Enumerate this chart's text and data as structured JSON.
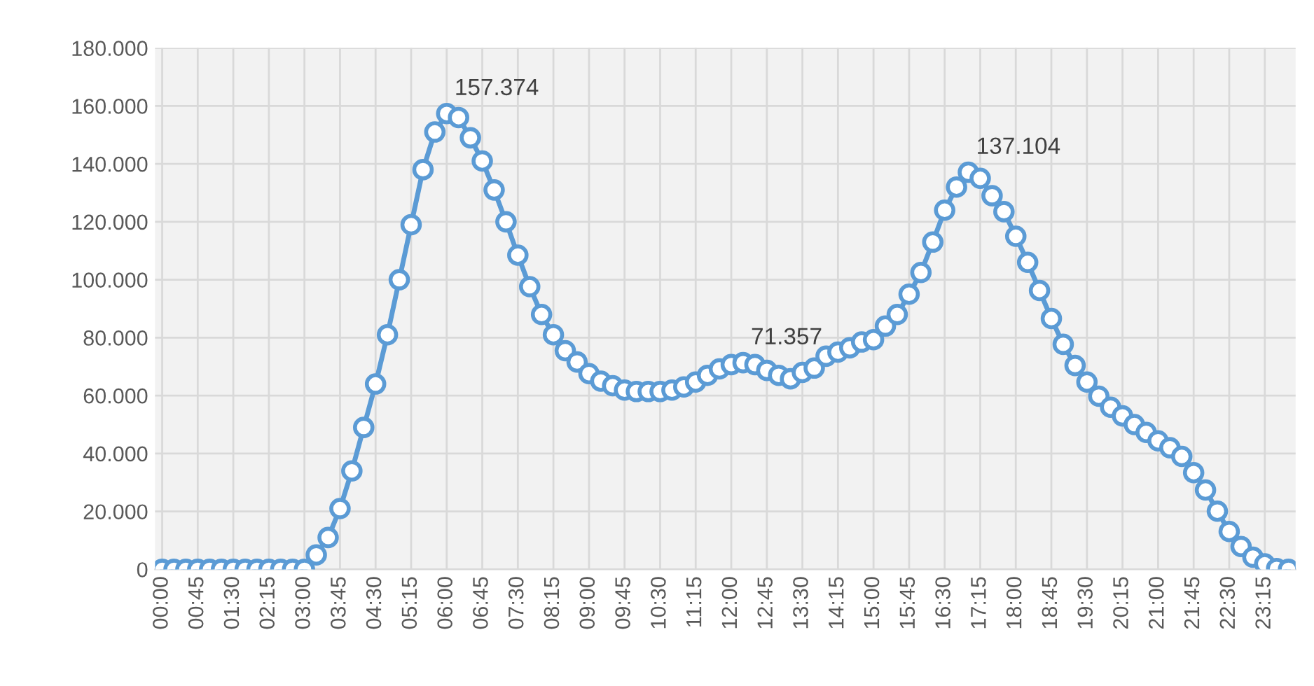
{
  "chart_data": {
    "type": "line",
    "categories": [
      "00:00",
      null,
      null,
      "00:45",
      null,
      null,
      "01:30",
      null,
      null,
      "02:15",
      null,
      null,
      "03:00",
      null,
      null,
      "03:45",
      null,
      null,
      "04:30",
      null,
      null,
      "05:15",
      null,
      null,
      "06:00",
      null,
      null,
      "06:45",
      null,
      null,
      "07:30",
      null,
      null,
      "08:15",
      null,
      null,
      "09:00",
      null,
      null,
      "09:45",
      null,
      null,
      "10:30",
      null,
      null,
      "11:15",
      null,
      null,
      "12:00",
      null,
      null,
      "12:45",
      null,
      null,
      "13:30",
      null,
      null,
      "14:15",
      null,
      null,
      "15:00",
      null,
      null,
      "15:45",
      null,
      null,
      "16:30",
      null,
      null,
      "17:15",
      null,
      null,
      "18:00",
      null,
      null,
      "18:45",
      null,
      null,
      "19:30",
      null,
      null,
      "20:15",
      null,
      null,
      "21:00",
      null,
      null,
      "21:45",
      null,
      null,
      "22:30",
      null,
      null,
      "23:15",
      null,
      null
    ],
    "series": [
      {
        "color": "#5b9bd5",
        "values": [
          0,
          0,
          0,
          0,
          0,
          0,
          0,
          0,
          0,
          0,
          0,
          0,
          0,
          5000,
          11000,
          21000,
          34000,
          49000,
          64000,
          81000,
          100000,
          119000,
          138000,
          151000,
          157374,
          156000,
          149000,
          141000,
          131000,
          120000,
          108500,
          97600,
          88000,
          81000,
          75500,
          71600,
          67600,
          65000,
          63400,
          61900,
          61400,
          61400,
          61400,
          61900,
          63000,
          64700,
          67000,
          69200,
          70700,
          71357,
          70700,
          68700,
          67000,
          65800,
          68000,
          69500,
          73600,
          75000,
          76500,
          78500,
          79300,
          84000,
          88000,
          95000,
          102500,
          113000,
          124000,
          132000,
          137104,
          135000,
          129000,
          123500,
          115000,
          106000,
          96300,
          86600,
          77700,
          70400,
          64700,
          59800,
          56000,
          53000,
          50000,
          47300,
          44400,
          42000,
          39000,
          33400,
          27400,
          20100,
          13100,
          7900,
          4200,
          1900,
          300,
          0
        ],
        "value_labels": [
          null,
          null,
          null,
          null,
          null,
          null,
          null,
          null,
          null,
          null,
          null,
          null,
          null,
          null,
          null,
          null,
          null,
          null,
          null,
          null,
          null,
          null,
          null,
          null,
          "157.374",
          null,
          null,
          null,
          null,
          null,
          null,
          null,
          null,
          null,
          null,
          null,
          null,
          null,
          null,
          null,
          null,
          null,
          null,
          null,
          null,
          null,
          null,
          null,
          null,
          "71.357",
          null,
          null,
          null,
          null,
          null,
          null,
          null,
          null,
          null,
          null,
          null,
          null,
          null,
          null,
          null,
          null,
          null,
          null,
          "137.104",
          null,
          null,
          null,
          null,
          null,
          null,
          null,
          null,
          null,
          null,
          null,
          null,
          null,
          null,
          null,
          null,
          null,
          null,
          null,
          null,
          null,
          null,
          null,
          null,
          null,
          null,
          null
        ]
      }
    ],
    "ylim": [
      0,
      180000
    ],
    "yticks": [
      0,
      {
        "value": 20000,
        "label": "20.000"
      },
      {
        "value": 40000,
        "label": "40.000"
      },
      {
        "value": 60000,
        "label": "60.000"
      },
      {
        "value": 80000,
        "label": "80.000"
      },
      {
        "value": 100000,
        "label": "100.000"
      },
      {
        "value": 120000,
        "label": "120.000"
      },
      {
        "value": 140000,
        "label": "140.000"
      },
      {
        "value": 160000,
        "label": "160.000"
      },
      {
        "value": 180000,
        "label": "180.000"
      }
    ],
    "grid": true,
    "marker": "circle",
    "line_style": "solid"
  }
}
